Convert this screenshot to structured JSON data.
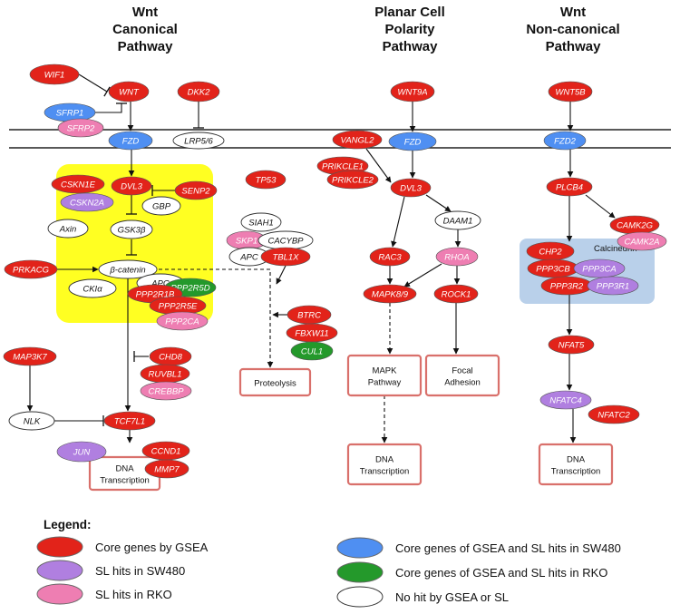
{
  "headers": {
    "canonical": [
      "Wnt",
      "Canonical",
      "Pathway"
    ],
    "pcp": [
      "Planar Cell",
      "Polarity",
      "Pathway"
    ],
    "noncanonical": [
      "Wnt",
      "Non-canonical",
      "Pathway"
    ]
  },
  "colors": {
    "core": "#e2231a",
    "sl_sw480": "#b07fe0",
    "sl_rko": "#ee7eb2",
    "core_sw480": "#4f8ff2",
    "core_rko": "#24992b",
    "none": "#ffffff",
    "membrane": "#222222",
    "destruction_complex": "#ffff22",
    "calcineurin": "#b9d0ea",
    "outcome_border": "#d9706b"
  },
  "groups": {
    "calcineurin": "Calcineurin"
  },
  "nodes": [
    {
      "id": "WIF1",
      "label": "WIF1",
      "status": "core"
    },
    {
      "id": "WNT",
      "label": "WNT",
      "status": "core"
    },
    {
      "id": "DKK2",
      "label": "DKK2",
      "status": "core"
    },
    {
      "id": "SFRP1",
      "label": "SFRP1",
      "status": "core_sw480"
    },
    {
      "id": "SFRP2",
      "label": "SFRP2",
      "status": "sl_rko"
    },
    {
      "id": "FZD",
      "label": "FZD",
      "status": "core_sw480"
    },
    {
      "id": "LRP56",
      "label": "LRP5/6",
      "status": "none"
    },
    {
      "id": "CSKN1E",
      "label": "CSKN1E",
      "status": "core"
    },
    {
      "id": "CSKN2A",
      "label": "CSKN2A",
      "status": "sl_sw480"
    },
    {
      "id": "DVL3",
      "label": "DVL3",
      "status": "core"
    },
    {
      "id": "SENP2",
      "label": "SENP2",
      "status": "core"
    },
    {
      "id": "GBP",
      "label": "GBP",
      "status": "none"
    },
    {
      "id": "Axin",
      "label": "Axin",
      "status": "none"
    },
    {
      "id": "GSK3b",
      "label": "GSK3β",
      "status": "none"
    },
    {
      "id": "PRKACG",
      "label": "PRKACG",
      "status": "core"
    },
    {
      "id": "bcat",
      "label": "β-catenin",
      "status": "none"
    },
    {
      "id": "APC",
      "label": "APC",
      "status": "none"
    },
    {
      "id": "CKIa",
      "label": "CKIα",
      "status": "none"
    },
    {
      "id": "PPP2R5D",
      "label": "PPP2R5D",
      "status": "core_rko"
    },
    {
      "id": "PPP2R1B",
      "label": "PPP2R1B",
      "status": "core"
    },
    {
      "id": "PPP2R5E",
      "label": "PPP2R5E",
      "status": "core"
    },
    {
      "id": "PPP2CA",
      "label": "PPP2CA",
      "status": "sl_rko"
    },
    {
      "id": "TP53",
      "label": "TP53",
      "status": "core"
    },
    {
      "id": "SIAH1",
      "label": "SIAH1",
      "status": "none"
    },
    {
      "id": "SKP1",
      "label": "SKP1",
      "status": "sl_rko"
    },
    {
      "id": "CACYBP",
      "label": "CACYBP",
      "status": "none"
    },
    {
      "id": "APC2",
      "label": "APC",
      "status": "none"
    },
    {
      "id": "TBL1X",
      "label": "TBL1X",
      "status": "core"
    },
    {
      "id": "BTRC",
      "label": "BTRC",
      "status": "core"
    },
    {
      "id": "FBXW11",
      "label": "FBXW11",
      "status": "core"
    },
    {
      "id": "CUL1",
      "label": "CUL1",
      "status": "core_rko"
    },
    {
      "id": "MAP3K7",
      "label": "MAP3K7",
      "status": "core"
    },
    {
      "id": "CHD8",
      "label": "CHD8",
      "status": "core"
    },
    {
      "id": "RUVBL1",
      "label": "RUVBL1",
      "status": "core"
    },
    {
      "id": "CREBBP",
      "label": "CREBBP",
      "status": "sl_rko"
    },
    {
      "id": "NLK",
      "label": "NLK",
      "status": "none"
    },
    {
      "id": "TCF7L1",
      "label": "TCF7L1",
      "status": "core"
    },
    {
      "id": "JUN",
      "label": "JUN",
      "status": "sl_sw480"
    },
    {
      "id": "CCND1",
      "label": "CCND1",
      "status": "core"
    },
    {
      "id": "MMP7",
      "label": "MMP7",
      "status": "core"
    },
    {
      "id": "WNT9A",
      "label": "WNT9A",
      "status": "core"
    },
    {
      "id": "VANGL2",
      "label": "VANGL2",
      "status": "core"
    },
    {
      "id": "FZD_p",
      "label": "FZD",
      "status": "core_sw480"
    },
    {
      "id": "PRIKCLE1",
      "label": "PRIKCLE1",
      "status": "core"
    },
    {
      "id": "PRIKCLE2",
      "label": "PRIKCLE2",
      "status": "core"
    },
    {
      "id": "DVL3_p",
      "label": "DVL3",
      "status": "core"
    },
    {
      "id": "DAAM1",
      "label": "DAAM1",
      "status": "none"
    },
    {
      "id": "RAC3",
      "label": "RAC3",
      "status": "core"
    },
    {
      "id": "RHOA",
      "label": "RHOA",
      "status": "sl_rko"
    },
    {
      "id": "MAPK89",
      "label": "MAPK8/9",
      "status": "core"
    },
    {
      "id": "ROCK1",
      "label": "ROCK1",
      "status": "core"
    },
    {
      "id": "WNT5B",
      "label": "WNT5B",
      "status": "core"
    },
    {
      "id": "FZD2",
      "label": "FZD2",
      "status": "core_sw480"
    },
    {
      "id": "PLCB4",
      "label": "PLCB4",
      "status": "core"
    },
    {
      "id": "CAMK2G",
      "label": "CAMK2G",
      "status": "core"
    },
    {
      "id": "CAMK2A",
      "label": "CAMK2A",
      "status": "sl_rko"
    },
    {
      "id": "CHP2",
      "label": "CHP2",
      "status": "core"
    },
    {
      "id": "PPP3CB",
      "label": "PPP3CB",
      "status": "core"
    },
    {
      "id": "PPP3CA",
      "label": "PPP3CA",
      "status": "sl_sw480"
    },
    {
      "id": "PPP3R2",
      "label": "PPP3R2",
      "status": "core"
    },
    {
      "id": "PPP3R1",
      "label": "PPP3R1",
      "status": "sl_sw480"
    },
    {
      "id": "NFAT5",
      "label": "NFAT5",
      "status": "core"
    },
    {
      "id": "NFATC4",
      "label": "NFATC4",
      "status": "sl_sw480"
    },
    {
      "id": "NFATC2",
      "label": "NFATC2",
      "status": "core"
    }
  ],
  "outcomes": [
    {
      "id": "proteolysis",
      "lines": [
        "Proteolysis"
      ]
    },
    {
      "id": "mapk",
      "lines": [
        "MAPK",
        "Pathway"
      ]
    },
    {
      "id": "focal",
      "lines": [
        "Focal",
        "Adhesion"
      ]
    },
    {
      "id": "dna_canon",
      "lines": [
        "DNA",
        "Transcription"
      ]
    },
    {
      "id": "dna_pcp",
      "lines": [
        "DNA",
        "Transcription"
      ]
    },
    {
      "id": "dna_nc",
      "lines": [
        "DNA",
        "Transcription"
      ]
    }
  ],
  "legend": {
    "title": "Legend:",
    "items": [
      {
        "status": "core",
        "label": "Core genes by GSEA"
      },
      {
        "status": "sl_sw480",
        "label": "SL hits in SW480"
      },
      {
        "status": "sl_rko",
        "label": "SL hits in RKO"
      },
      {
        "status": "core_sw480",
        "label": "Core genes of GSEA and SL hits in SW480"
      },
      {
        "status": "core_rko",
        "label": "Core genes of GSEA and SL hits in RKO"
      },
      {
        "status": "none",
        "label": "No hit by GSEA or SL"
      }
    ]
  }
}
